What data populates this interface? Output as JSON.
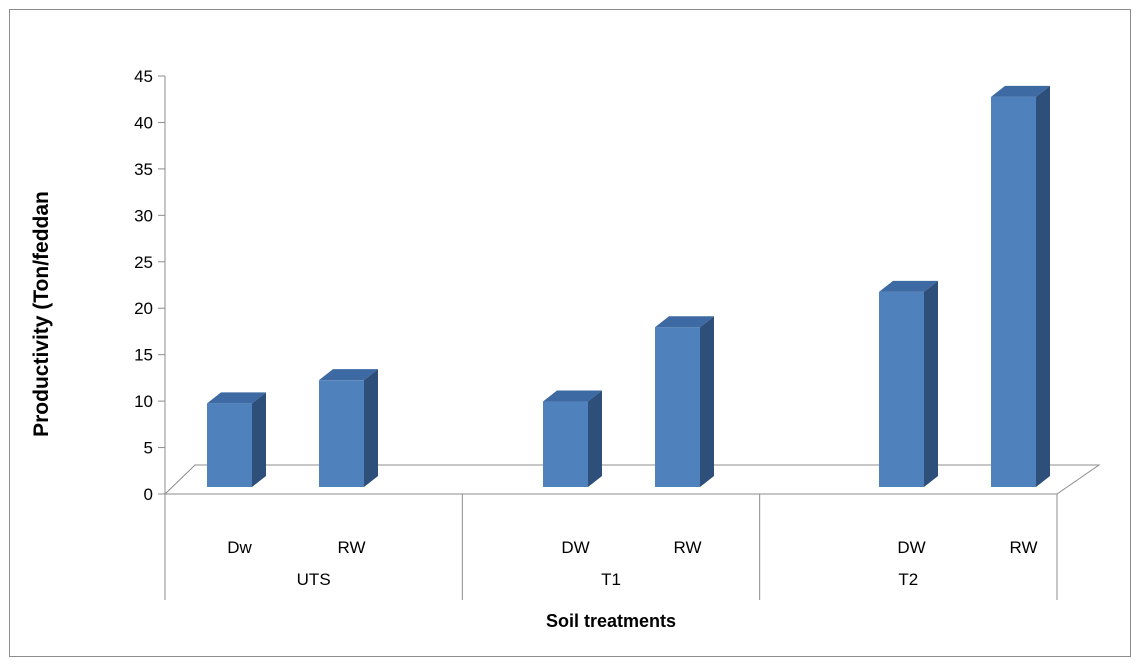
{
  "chart_data": {
    "type": "bar",
    "title": "",
    "ylabel": "Productivity (Ton/feddan",
    "xlabel": "Soil treatments",
    "ylim": [
      0,
      45
    ],
    "yticks": [
      0,
      5,
      10,
      15,
      20,
      25,
      30,
      35,
      40,
      45
    ],
    "groups": [
      {
        "label": "UTS",
        "bars": [
          {
            "label": "Dw",
            "value": 9
          },
          {
            "label": "RW",
            "value": 11.5
          }
        ]
      },
      {
        "label": "T1",
        "bars": [
          {
            "label": "DW",
            "value": 9.2
          },
          {
            "label": "RW",
            "value": 17.2
          }
        ]
      },
      {
        "label": "T2",
        "bars": [
          {
            "label": "DW",
            "value": 21
          },
          {
            "label": "RW",
            "value": 42
          }
        ]
      }
    ],
    "bar_color": "#4f81bd",
    "grid": false,
    "legend": "none"
  }
}
